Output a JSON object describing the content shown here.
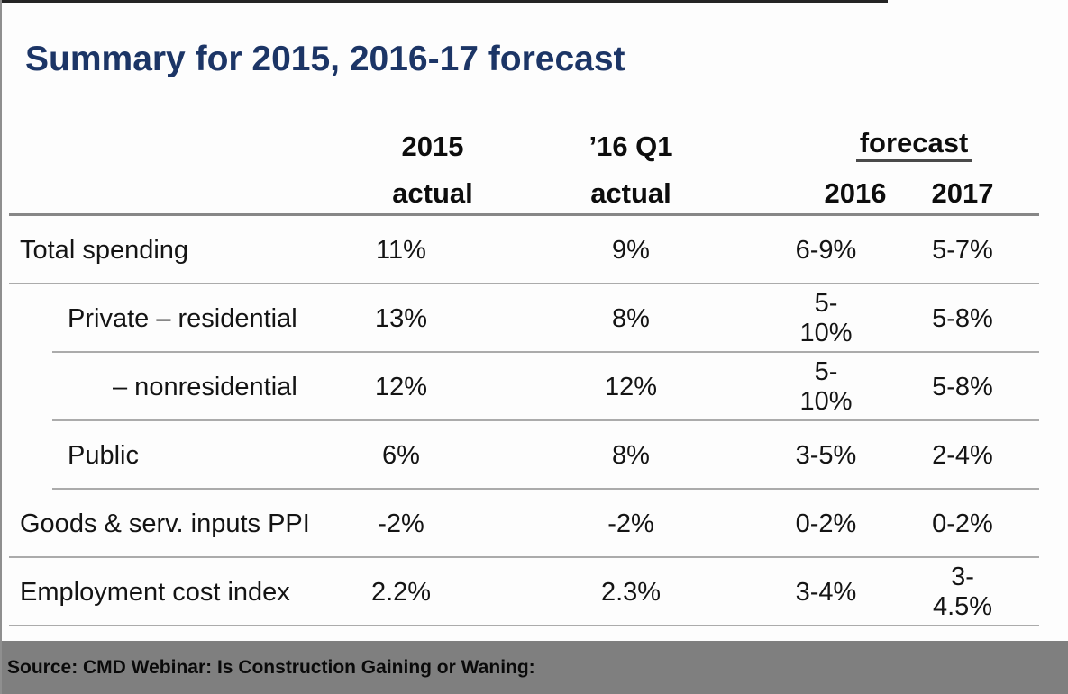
{
  "title": "Summary for 2015, 2016-17 forecast",
  "table": {
    "header": {
      "col2015_line1": "2015",
      "col2015_line2": "actual",
      "colq1_line1": "’16 Q1",
      "colq1_line2": "actual",
      "forecast_label": "forecast",
      "forecast_year1": "2016",
      "forecast_year2": "2017"
    },
    "rows": [
      {
        "label": "Total spending",
        "v2015": "11%",
        "vq1": "9%",
        "f2016": "6-9%",
        "f2017": "5-7%"
      },
      {
        "label": "Private – residential",
        "v2015": "13%",
        "vq1": "8%",
        "f2016": "5-10%",
        "f2017": "5-8%"
      },
      {
        "label": "– nonresidential",
        "v2015": "12%",
        "vq1": "12%",
        "f2016": "5-10%",
        "f2017": "5-8%"
      },
      {
        "label": "Public",
        "v2015": "6%",
        "vq1": "8%",
        "f2016": "3-5%",
        "f2017": "2-4%"
      },
      {
        "label": "Goods & serv. inputs PPI",
        "v2015": "-2%",
        "vq1": "-2%",
        "f2016": "0-2%",
        "f2017": "0-2%"
      },
      {
        "label": "Employment cost index",
        "v2015": "2.2%",
        "vq1": "2.3%",
        "f2016": "3-4%",
        "f2017": "3-4.5%"
      }
    ]
  },
  "footer": {
    "source_text": "Source: CMD Webinar: Is Construction Gaining or Waning:"
  },
  "colors": {
    "title_navy": "#1c3566",
    "footer_gray": "#7f7f7f",
    "rule_dark": "#878787",
    "rule_light": "#ababab"
  }
}
